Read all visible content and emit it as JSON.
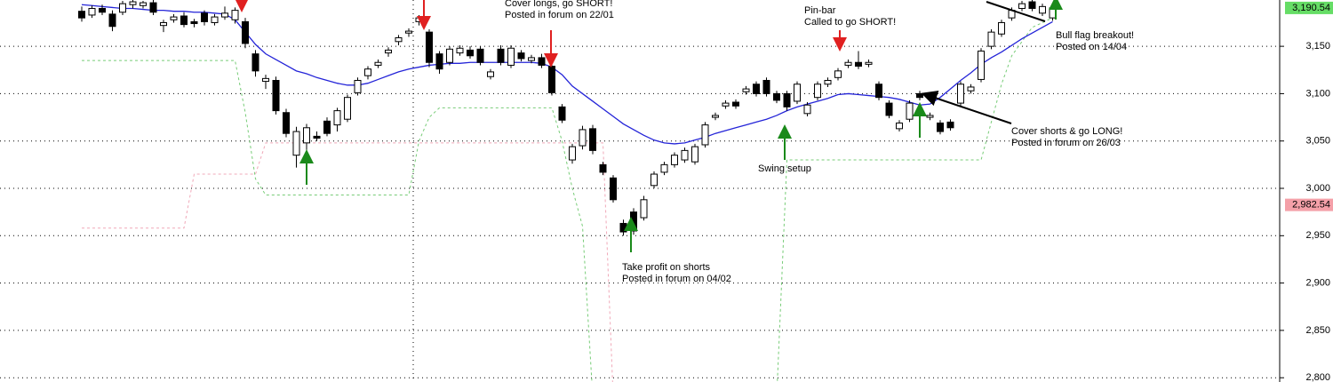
{
  "chart_data": {
    "type": "candlestick",
    "ylim": [
      2795.5,
      3198.9
    ],
    "yticks": [
      {
        "value": 2800,
        "label": "2,800"
      },
      {
        "value": 2850,
        "label": "2,850"
      },
      {
        "value": 2900,
        "label": "2,900"
      },
      {
        "value": 2950,
        "label": "2,950"
      },
      {
        "value": 3000,
        "label": "3,000"
      },
      {
        "value": 3050,
        "label": "3,050"
      },
      {
        "value": 3100,
        "label": "3,100"
      },
      {
        "value": 3150,
        "label": "3,150"
      }
    ],
    "grid": true,
    "up_color": "#ffffff",
    "down_color": "#000000",
    "ohlc": [
      [
        3187,
        3192,
        3176,
        3180
      ],
      [
        3183,
        3193,
        3180,
        3190
      ],
      [
        3190,
        3194,
        3183,
        3186
      ],
      [
        3184,
        3188,
        3166,
        3171
      ],
      [
        3186,
        3198,
        3183,
        3195
      ],
      [
        3194,
        3199,
        3190,
        3197
      ],
      [
        3193,
        3198,
        3190,
        3196
      ],
      [
        3196,
        3199,
        3183,
        3186
      ],
      [
        3172,
        3178,
        3165,
        3175
      ],
      [
        3178,
        3184,
        3175,
        3181
      ],
      [
        3182,
        3186,
        3170,
        3173
      ],
      [
        3176,
        3179,
        3170,
        3174
      ],
      [
        3185,
        3188,
        3172,
        3176
      ],
      [
        3175,
        3184,
        3172,
        3181
      ],
      [
        3181,
        3192,
        3178,
        3185
      ],
      [
        3178,
        3191,
        3174,
        3188
      ],
      [
        3176,
        3180,
        3148,
        3153
      ],
      [
        3142,
        3146,
        3118,
        3124
      ],
      [
        3113,
        3120,
        3105,
        3116
      ],
      [
        3114,
        3118,
        3078,
        3082
      ],
      [
        3080,
        3084,
        3054,
        3058
      ],
      [
        3035,
        3065,
        3022,
        3060
      ],
      [
        3048,
        3068,
        3040,
        3064
      ],
      [
        3055,
        3060,
        3050,
        3053
      ],
      [
        3071,
        3075,
        3055,
        3058
      ],
      [
        3067,
        3085,
        3060,
        3082
      ],
      [
        3073,
        3099,
        3070,
        3096
      ],
      [
        3101,
        3117,
        3098,
        3114
      ],
      [
        3119,
        3129,
        3115,
        3126
      ],
      [
        3130,
        3136,
        3127,
        3133
      ],
      [
        3143,
        3149,
        3139,
        3146
      ],
      [
        3155,
        3162,
        3151,
        3159
      ],
      [
        3164,
        3169,
        3160,
        3166
      ],
      [
        3176,
        3183,
        3172,
        3180
      ],
      [
        3165,
        3168,
        3128,
        3133
      ],
      [
        3142,
        3145,
        3121,
        3126
      ],
      [
        3133,
        3150,
        3130,
        3147
      ],
      [
        3143,
        3151,
        3140,
        3148
      ],
      [
        3146,
        3150,
        3137,
        3140
      ],
      [
        3147,
        3150,
        3130,
        3133
      ],
      [
        3118,
        3126,
        3115,
        3123
      ],
      [
        3147,
        3151,
        3130,
        3133
      ],
      [
        3130,
        3151,
        3127,
        3148
      ],
      [
        3143,
        3146,
        3134,
        3137
      ],
      [
        3135,
        3141,
        3132,
        3138
      ],
      [
        3138,
        3142,
        3127,
        3130
      ],
      [
        3129,
        3132,
        3098,
        3101
      ],
      [
        3086,
        3089,
        3069,
        3072
      ],
      [
        3030,
        3047,
        3026,
        3044
      ],
      [
        3045,
        3066,
        3041,
        3062
      ],
      [
        3063,
        3067,
        3036,
        3040
      ],
      [
        3025,
        3028,
        3014,
        3017
      ],
      [
        3011,
        3014,
        2985,
        2988
      ],
      [
        2963,
        2967,
        2950,
        2954
      ],
      [
        2975,
        2979,
        2951,
        2955
      ],
      [
        2969,
        2992,
        2966,
        2988
      ],
      [
        3003,
        3018,
        3000,
        3015
      ],
      [
        3017,
        3028,
        3014,
        3025
      ],
      [
        3025,
        3038,
        3022,
        3035
      ],
      [
        3030,
        3043,
        3027,
        3040
      ],
      [
        3028,
        3047,
        3025,
        3044
      ],
      [
        3046,
        3070,
        3043,
        3067
      ],
      [
        3075,
        3080,
        3072,
        3077
      ],
      [
        3087,
        3093,
        3084,
        3090
      ],
      [
        3091,
        3094,
        3084,
        3087
      ],
      [
        3102,
        3108,
        3099,
        3105
      ],
      [
        3110,
        3113,
        3097,
        3100
      ],
      [
        3114,
        3117,
        3097,
        3100
      ],
      [
        3100,
        3103,
        3090,
        3093
      ],
      [
        3100,
        3103,
        3082,
        3086
      ],
      [
        3092,
        3113,
        3089,
        3110
      ],
      [
        3079,
        3091,
        3076,
        3088
      ],
      [
        3096,
        3113,
        3093,
        3110
      ],
      [
        3110,
        3117,
        3107,
        3114
      ],
      [
        3117,
        3127,
        3114,
        3124
      ],
      [
        3130,
        3136,
        3127,
        3133
      ],
      [
        3133,
        3145,
        3126,
        3129
      ],
      [
        3131,
        3136,
        3128,
        3133
      ],
      [
        3110,
        3113,
        3093,
        3096
      ],
      [
        3090,
        3093,
        3074,
        3077
      ],
      [
        3063,
        3072,
        3060,
        3069
      ],
      [
        3073,
        3093,
        3070,
        3090
      ],
      [
        3100,
        3103,
        3093,
        3096
      ],
      [
        3075,
        3080,
        3072,
        3077
      ],
      [
        3069,
        3072,
        3057,
        3060
      ],
      [
        3070,
        3073,
        3061,
        3064
      ],
      [
        3090,
        3113,
        3087,
        3110
      ],
      [
        3103,
        3110,
        3100,
        3107
      ],
      [
        3115,
        3148,
        3112,
        3145
      ],
      [
        3150,
        3168,
        3147,
        3165
      ],
      [
        3163,
        3178,
        3160,
        3175
      ],
      [
        3180,
        3191,
        3177,
        3188
      ],
      [
        3190,
        3198,
        3187,
        3195
      ],
      [
        3197,
        3199,
        3187,
        3190
      ],
      [
        3185,
        3195,
        3182,
        3192
      ],
      [
        3180,
        3193,
        3177,
        3190.54
      ]
    ],
    "moving_average": {
      "color": "#2424d8",
      "values": [
        3194,
        3193,
        3192,
        3191,
        3190,
        3190,
        3189,
        3188,
        3188,
        3187,
        3187,
        3186,
        3186,
        3185,
        3184,
        3178,
        3165,
        3152,
        3142,
        3136,
        3130,
        3124,
        3121,
        3117,
        3114,
        3111,
        3109,
        3109,
        3111,
        3115,
        3119,
        3123,
        3126,
        3128,
        3130,
        3131,
        3132,
        3132,
        3133,
        3133,
        3133,
        3133,
        3133,
        3133,
        3133,
        3132,
        3128,
        3120,
        3108,
        3100,
        3092,
        3084,
        3076,
        3068,
        3062,
        3056,
        3051,
        3048,
        3047,
        3048,
        3051,
        3054,
        3058,
        3061,
        3064,
        3067,
        3070,
        3073,
        3077,
        3082,
        3086,
        3089,
        3092,
        3095,
        3099,
        3100,
        3099,
        3098,
        3097,
        3096,
        3094,
        3091,
        3088,
        3089,
        3096,
        3105,
        3114,
        3122,
        3131,
        3138,
        3144,
        3151,
        3158,
        3164,
        3170,
        3176
      ]
    },
    "bands": [
      {
        "color": "#77cc77",
        "values": [
          3135,
          3135,
          3135,
          3135,
          3135,
          3135,
          3135,
          3135,
          3135,
          3135,
          3135,
          3135,
          3135,
          3135,
          3135,
          3135,
          3080,
          3010,
          2993,
          2993,
          2993,
          2993,
          2993,
          2993,
          2993,
          2993,
          2993,
          2993,
          2993,
          2993,
          2993,
          2993,
          2993,
          3050,
          3075,
          3085,
          3085,
          3085,
          3085,
          3085,
          3085,
          3085,
          3085,
          3085,
          3085,
          3085,
          3085,
          3050,
          3000,
          2960,
          2780,
          2780,
          2780,
          2780,
          2780,
          2780,
          2780,
          2780,
          2780,
          2780,
          2780,
          2780,
          2780,
          2780,
          2780,
          2780,
          2780,
          2780,
          2780,
          3030,
          3030,
          3030,
          3030,
          3030,
          3030,
          3030,
          3030,
          3030,
          3030,
          3030,
          3030,
          3030,
          3030,
          3030,
          3030,
          3030,
          3030,
          3030,
          3030,
          3070,
          3110,
          3140,
          3155,
          3170,
          3175,
          3180
        ]
      },
      {
        "color": "#f0a8b8",
        "values": [
          2958,
          2958,
          2958,
          2958,
          2958,
          2958,
          2958,
          2958,
          2958,
          2958,
          2958,
          3015,
          3015,
          3015,
          3015,
          3015,
          3015,
          3015,
          3048,
          3048,
          3048,
          3048,
          3048,
          3048,
          3048,
          3048,
          3048,
          3048,
          3048,
          3048,
          3048,
          3048,
          3048,
          3048,
          3048,
          3048,
          3048,
          3048,
          3048,
          3048,
          3048,
          3048,
          3048,
          3048,
          3048,
          3048,
          3048,
          3048,
          3048,
          3048,
          3048,
          3048,
          2780,
          2780,
          2780,
          2780,
          2780,
          2780,
          2780,
          2780,
          2780,
          2780,
          2780,
          2780,
          2780,
          2780,
          2780,
          2780,
          2780,
          2780,
          2780,
          2780,
          2780,
          2780,
          2780,
          2780,
          2780,
          2780,
          2780,
          2780,
          2780,
          2780,
          2780,
          2780,
          2780,
          2780,
          2780,
          2780,
          2780,
          2780,
          2780,
          2780,
          2780,
          2780,
          2780,
          2780
        ]
      }
    ],
    "price_markers": [
      {
        "value": 3190.54,
        "label": "3,190.54",
        "color": "#66dd66"
      },
      {
        "value": 2982.54,
        "label": "2,982.54",
        "color": "#f4a0a8"
      }
    ],
    "annotations": [
      {
        "lines": [
          "Cover longs, go SHORT!",
          "Posted in forum on 22/01"
        ]
      },
      {
        "lines": [
          "Pin-bar",
          "Called to go SHORT!"
        ]
      },
      {
        "lines": [
          "Bull flag breakout!",
          "Posted on 14/04"
        ]
      },
      {
        "lines": [
          "Cover shorts & go LONG!",
          "Posted in forum on 26/03"
        ]
      },
      {
        "lines": [
          "Swing setup"
        ]
      },
      {
        "lines": [
          "Take profit on shorts",
          "Posted in forum on 04/02"
        ]
      }
    ]
  }
}
